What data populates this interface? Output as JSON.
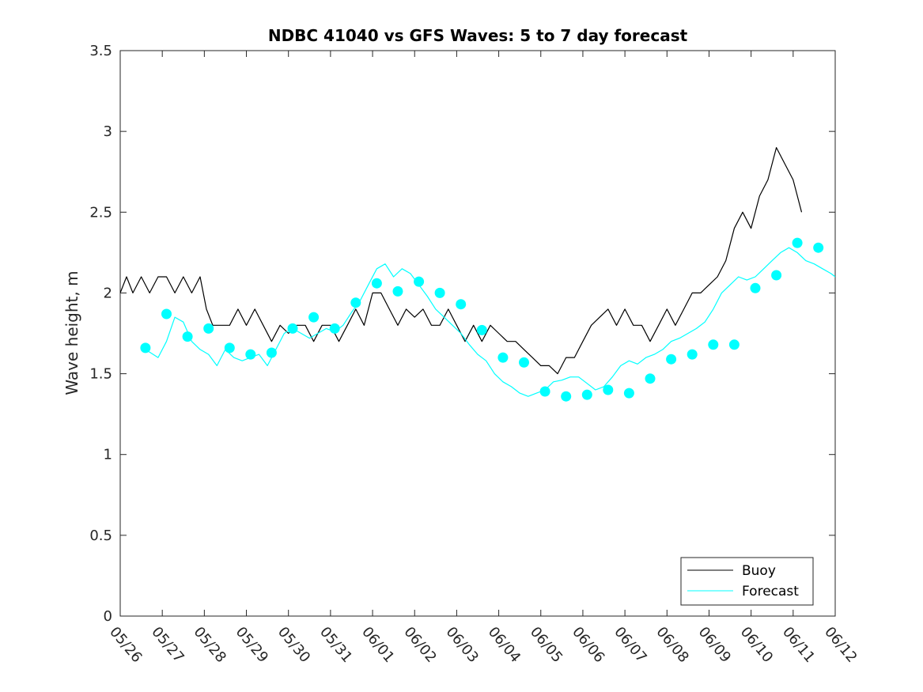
{
  "chart_data": {
    "type": "line",
    "title": "NDBC 41040 vs GFS Waves: 5 to 7 day forecast",
    "ylabel": "Wave height, m",
    "xlabel": "",
    "x_tick_labels": [
      "05/26",
      "05/27",
      "05/28",
      "05/29",
      "05/30",
      "05/31",
      "06/01",
      "06/02",
      "06/03",
      "06/04",
      "06/05",
      "06/06",
      "06/07",
      "06/08",
      "06/09",
      "06/10",
      "06/11",
      "06/12"
    ],
    "xlim_days": [
      0,
      17
    ],
    "ylim": [
      0,
      3.5
    ],
    "y_ticks": [
      0,
      0.5,
      1,
      1.5,
      2,
      2.5,
      3,
      3.5
    ],
    "y_tick_labels": [
      "0",
      "0.5",
      "1",
      "1.5",
      "2",
      "2.5",
      "3",
      "3.5"
    ],
    "grid": false,
    "legend_position": "bottom-right",
    "colors": {
      "buoy": "#000000",
      "forecast": "#00ffff"
    },
    "series": [
      {
        "name": "Buoy",
        "style": "line",
        "x_days": [
          0.0,
          0.15,
          0.3,
          0.5,
          0.7,
          0.9,
          1.1,
          1.3,
          1.5,
          1.7,
          1.9,
          2.05,
          2.2,
          2.4,
          2.6,
          2.8,
          3.0,
          3.2,
          3.4,
          3.6,
          3.8,
          4.0,
          4.2,
          4.4,
          4.6,
          4.8,
          5.0,
          5.2,
          5.4,
          5.6,
          5.8,
          6.0,
          6.2,
          6.4,
          6.6,
          6.8,
          7.0,
          7.2,
          7.4,
          7.6,
          7.8,
          8.0,
          8.2,
          8.4,
          8.6,
          8.8,
          9.0,
          9.2,
          9.4,
          9.6,
          9.8,
          10.0,
          10.2,
          10.4,
          10.6,
          10.8,
          11.0,
          11.2,
          11.4,
          11.6,
          11.8,
          12.0,
          12.2,
          12.4,
          12.6,
          12.8,
          13.0,
          13.2,
          13.4,
          13.6,
          13.8,
          14.0,
          14.2,
          14.4,
          14.6,
          14.8,
          15.0,
          15.2,
          15.4,
          15.6,
          15.8,
          16.0,
          16.2
        ],
        "values": [
          2.0,
          2.1,
          2.0,
          2.1,
          2.0,
          2.1,
          2.1,
          2.0,
          2.1,
          2.0,
          2.1,
          1.9,
          1.8,
          1.8,
          1.8,
          1.9,
          1.8,
          1.9,
          1.8,
          1.7,
          1.8,
          1.75,
          1.8,
          1.8,
          1.7,
          1.8,
          1.8,
          1.7,
          1.8,
          1.9,
          1.8,
          2.0,
          2.0,
          1.9,
          1.8,
          1.9,
          1.85,
          1.9,
          1.8,
          1.8,
          1.9,
          1.8,
          1.7,
          1.8,
          1.7,
          1.8,
          1.75,
          1.7,
          1.7,
          1.65,
          1.6,
          1.55,
          1.55,
          1.5,
          1.6,
          1.6,
          1.7,
          1.8,
          1.85,
          1.9,
          1.8,
          1.9,
          1.8,
          1.8,
          1.7,
          1.8,
          1.9,
          1.8,
          1.9,
          2.0,
          2.0,
          2.05,
          2.1,
          2.2,
          2.4,
          2.5,
          2.4,
          2.6,
          2.7,
          2.9,
          2.8,
          2.7,
          2.5
        ]
      },
      {
        "name": "Forecast",
        "style": "line",
        "x_days": [
          0.6,
          0.9,
          1.1,
          1.3,
          1.5,
          1.7,
          1.9,
          2.1,
          2.3,
          2.5,
          2.7,
          2.9,
          3.1,
          3.3,
          3.5,
          3.7,
          3.9,
          4.1,
          4.3,
          4.5,
          4.7,
          4.9,
          5.1,
          5.3,
          5.5,
          5.7,
          5.9,
          6.1,
          6.3,
          6.5,
          6.7,
          6.9,
          7.1,
          7.3,
          7.5,
          7.7,
          7.9,
          8.1,
          8.3,
          8.5,
          8.7,
          8.9,
          9.1,
          9.3,
          9.5,
          9.7,
          9.9,
          10.1,
          10.3,
          10.5,
          10.7,
          10.9,
          11.1,
          11.3,
          11.5,
          11.7,
          11.9,
          12.1,
          12.3,
          12.5,
          12.7,
          12.9,
          13.1,
          13.3,
          13.5,
          13.7,
          13.9,
          14.1,
          14.3,
          14.5,
          14.7,
          14.9,
          15.1,
          15.3,
          15.5,
          15.7,
          15.9,
          16.1,
          16.3,
          16.5,
          16.7,
          16.9,
          17.0
        ],
        "values": [
          1.65,
          1.6,
          1.7,
          1.85,
          1.82,
          1.7,
          1.65,
          1.62,
          1.55,
          1.65,
          1.6,
          1.58,
          1.6,
          1.62,
          1.55,
          1.65,
          1.75,
          1.78,
          1.75,
          1.72,
          1.75,
          1.78,
          1.76,
          1.8,
          1.88,
          1.95,
          2.05,
          2.15,
          2.18,
          2.1,
          2.15,
          2.12,
          2.05,
          1.98,
          1.9,
          1.85,
          1.8,
          1.75,
          1.68,
          1.62,
          1.58,
          1.5,
          1.45,
          1.42,
          1.38,
          1.36,
          1.38,
          1.4,
          1.45,
          1.46,
          1.48,
          1.48,
          1.44,
          1.4,
          1.42,
          1.48,
          1.55,
          1.58,
          1.56,
          1.6,
          1.62,
          1.65,
          1.7,
          1.72,
          1.75,
          1.78,
          1.82,
          1.9,
          2.0,
          2.05,
          2.1,
          2.08,
          2.1,
          2.15,
          2.2,
          2.25,
          2.28,
          2.25,
          2.2,
          2.18,
          2.15,
          2.12,
          2.1
        ]
      }
    ],
    "markers": {
      "style": "filled-circle",
      "x_days": [
        0.6,
        1.1,
        1.6,
        2.1,
        2.6,
        3.1,
        3.6,
        4.1,
        4.6,
        5.1,
        5.6,
        6.1,
        6.6,
        7.1,
        7.6,
        8.1,
        8.6,
        9.1,
        9.6,
        10.1,
        10.6,
        11.1,
        11.6,
        12.1,
        12.6,
        13.1,
        13.6,
        14.1,
        14.6,
        15.1,
        15.6,
        16.1,
        16.6
      ],
      "values": [
        1.66,
        1.87,
        1.73,
        1.78,
        1.66,
        1.62,
        1.63,
        1.78,
        1.85,
        1.78,
        1.94,
        2.06,
        2.01,
        2.07,
        2.0,
        1.93,
        1.77,
        1.6,
        1.57,
        1.39,
        1.36,
        1.37,
        1.4,
        1.38,
        1.47,
        1.59,
        1.62,
        1.68,
        1.68,
        2.03,
        2.11,
        2.31,
        2.28
      ]
    },
    "legend": [
      "Buoy",
      "Forecast"
    ]
  }
}
